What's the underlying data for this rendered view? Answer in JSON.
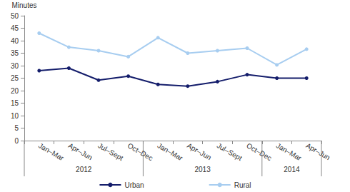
{
  "chart_data": {
    "type": "line",
    "y_label": "Minutes",
    "categories": [
      "Jan–Mar",
      "Apr–Jun",
      "Jul–Sept",
      "Oct–Dec",
      "Jan–Mar",
      "Apr–Jun",
      "Jul–Sept",
      "Oct–Dec",
      "Jan–Mar",
      "Apr–Jun"
    ],
    "category_groups": [
      "2012",
      "2012",
      "2012",
      "2012",
      "2013",
      "2013",
      "2013",
      "2013",
      "2014",
      "2014"
    ],
    "series": [
      {
        "name": "Urban",
        "color": "#141d6b",
        "marker": "circle",
        "values": [
          28,
          29,
          24.2,
          25.8,
          22.5,
          21.8,
          23.6,
          26.4,
          25,
          25
        ]
      },
      {
        "name": "Rural",
        "color": "#a7cdf0",
        "marker": "circle",
        "values": [
          43,
          37.4,
          36,
          33.6,
          41.2,
          35,
          36,
          37,
          30.3,
          36.6
        ]
      }
    ],
    "ylim": [
      0,
      50
    ],
    "yticks": [
      0,
      5,
      10,
      15,
      20,
      25,
      30,
      35,
      40,
      45,
      50
    ],
    "grid": false,
    "legend": "bottom"
  }
}
